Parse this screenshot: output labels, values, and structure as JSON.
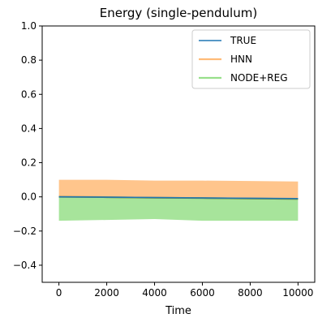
{
  "chart_data": {
    "type": "area",
    "title": "Energy (single-pendulum)",
    "xlabel": "Time",
    "ylabel": "",
    "xlim": [
      -700,
      10700
    ],
    "ylim": [
      -0.5,
      1.0
    ],
    "x_ticks": [
      0,
      2000,
      4000,
      6000,
      8000,
      10000
    ],
    "x_tick_labels": [
      "0",
      "2000",
      "4000",
      "6000",
      "8000",
      "10000"
    ],
    "y_ticks": [
      -0.4,
      -0.2,
      0.0,
      0.2,
      0.4,
      0.6,
      0.8,
      1.0
    ],
    "y_tick_labels": [
      "−0.4",
      "−0.2",
      "0.0",
      "0.2",
      "0.4",
      "0.6",
      "0.8",
      "1.0"
    ],
    "grid": false,
    "legend_position": "top-right",
    "series": [
      {
        "name": "TRUE",
        "kind": "line",
        "color": "#1f77b4",
        "x": [
          0,
          10000
        ],
        "y": [
          0.0,
          -0.01
        ]
      },
      {
        "name": "HNN",
        "kind": "band",
        "color": "#ffbb78",
        "x": [
          0,
          2000,
          4000,
          6000,
          8000,
          10000
        ],
        "upper": [
          0.1,
          0.1,
          0.095,
          0.095,
          0.093,
          0.09
        ],
        "lower": [
          0.0,
          -0.002,
          -0.005,
          -0.007,
          -0.01,
          -0.012
        ],
        "mean": [
          0.0,
          -0.002,
          -0.005,
          -0.007,
          -0.01,
          -0.012
        ]
      },
      {
        "name": "NODE+REG",
        "kind": "band",
        "color": "#98df8a",
        "x": [
          0,
          2000,
          4000,
          6000,
          8000,
          10000
        ],
        "upper": [
          0.0,
          -0.002,
          -0.005,
          -0.007,
          -0.01,
          -0.012
        ],
        "lower": [
          -0.14,
          -0.135,
          -0.13,
          -0.14,
          -0.14,
          -0.14
        ],
        "mean": [
          0.0,
          -0.002,
          -0.005,
          -0.007,
          -0.01,
          -0.012
        ]
      }
    ]
  }
}
